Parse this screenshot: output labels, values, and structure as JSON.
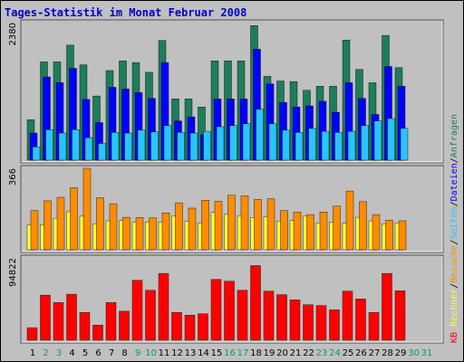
{
  "title": "Tages-Statistik im Monat Februar 2008",
  "colors": {
    "background": "#c0c0c0",
    "title": "#0000cc",
    "hits": "#1e7d5a",
    "files": "#0000ff",
    "pages": "#29c4ff",
    "visits": "#ff8c00",
    "sites": "#ffff33",
    "kbytes": "#ff0000",
    "weekend": "#119966",
    "weekday": "#000000"
  },
  "chart_data": [
    {
      "type": "bar",
      "panel": "top",
      "ymax_label": "2380",
      "ylim": [
        0,
        2380
      ],
      "categories": [
        "1",
        "2",
        "3",
        "4",
        "5",
        "6",
        "7",
        "8",
        "9",
        "10",
        "11",
        "12",
        "13",
        "14",
        "15",
        "16",
        "17",
        "18",
        "19",
        "20",
        "21",
        "22",
        "23",
        "24",
        "25",
        "26",
        "27",
        "28",
        "29"
      ],
      "right_labels": [
        {
          "text": "Anfragen",
          "color": "#1e7d5a"
        },
        {
          "text": "Dateien",
          "color": "#0000ff"
        },
        {
          "text": "Seiten",
          "color": "#29c4ff"
        }
      ],
      "series": [
        {
          "key": "hits",
          "values": [
            700,
            1700,
            1700,
            1990,
            1650,
            1110,
            1550,
            1720,
            1690,
            1520,
            2070,
            1060,
            1060,
            920,
            1720,
            1720,
            1720,
            2330,
            1450,
            1370,
            1360,
            1210,
            1280,
            1280,
            2080,
            1570,
            1340,
            2160,
            1600
          ]
        },
        {
          "key": "files",
          "values": [
            470,
            1440,
            1340,
            1590,
            1050,
            650,
            1260,
            1230,
            1170,
            1070,
            1690,
            680,
            750,
            440,
            1060,
            1060,
            1060,
            1920,
            1320,
            1000,
            920,
            940,
            1020,
            830,
            1340,
            1070,
            790,
            1620,
            1280
          ]
        },
        {
          "key": "pages",
          "values": [
            230,
            530,
            470,
            530,
            390,
            290,
            480,
            470,
            520,
            490,
            600,
            480,
            470,
            500,
            580,
            600,
            630,
            880,
            630,
            520,
            480,
            550,
            500,
            480,
            500,
            600,
            680,
            720,
            550
          ]
        }
      ]
    },
    {
      "type": "bar",
      "panel": "middle",
      "ymax_label": "366",
      "ylim": [
        0,
        366
      ],
      "categories": [
        "1",
        "2",
        "3",
        "4",
        "5",
        "6",
        "7",
        "8",
        "9",
        "10",
        "11",
        "12",
        "13",
        "14",
        "15",
        "16",
        "17",
        "18",
        "19",
        "20",
        "21",
        "22",
        "23",
        "24",
        "25",
        "26",
        "27",
        "28",
        "29"
      ],
      "right_labels": [
        {
          "text": "Besuche",
          "color": "#ff8c00"
        },
        {
          "text": "Rechner",
          "color": "#ffff33"
        }
      ],
      "series": [
        {
          "key": "visits",
          "values": [
            176,
            220,
            236,
            279,
            366,
            234,
            207,
            146,
            145,
            143,
            166,
            211,
            187,
            223,
            218,
            245,
            243,
            226,
            229,
            176,
            169,
            158,
            170,
            196,
            264,
            216,
            158,
            133,
            130
          ]
        },
        {
          "key": "sites",
          "values": [
            113,
            113,
            142,
            171,
            151,
            117,
            130,
            131,
            125,
            125,
            125,
            151,
            128,
            120,
            168,
            159,
            151,
            145,
            148,
            129,
            131,
            151,
            121,
            125,
            119,
            146,
            130,
            117,
            121
          ]
        }
      ]
    },
    {
      "type": "bar",
      "panel": "bottom",
      "ymax_label": "94822",
      "ylim": [
        0,
        94822
      ],
      "categories": [
        "1",
        "2",
        "3",
        "4",
        "5",
        "6",
        "7",
        "8",
        "9",
        "10",
        "11",
        "12",
        "13",
        "14",
        "15",
        "16",
        "17",
        "18",
        "19",
        "20",
        "21",
        "22",
        "23",
        "24",
        "25",
        "26",
        "27",
        "28",
        "29"
      ],
      "right_labels": [
        {
          "text": "KB",
          "color": "#ff0000"
        }
      ],
      "series": [
        {
          "key": "kbytes",
          "values": [
            14500,
            52000,
            43500,
            53000,
            32000,
            17500,
            43500,
            33500,
            69000,
            57500,
            77000,
            32000,
            29000,
            30500,
            70000,
            68000,
            57500,
            86000,
            56500,
            52500,
            46500,
            41000,
            40000,
            35000,
            56500,
            47500,
            32000,
            77000,
            57000
          ]
        }
      ]
    }
  ],
  "x_axis": {
    "days": [
      "1",
      "2",
      "3",
      "4",
      "5",
      "6",
      "7",
      "8",
      "9",
      "10",
      "11",
      "12",
      "13",
      "14",
      "15",
      "16",
      "17",
      "18",
      "19",
      "20",
      "21",
      "22",
      "23",
      "24",
      "25",
      "26",
      "27",
      "28",
      "29",
      "30",
      "31"
    ],
    "weekend_days": [
      "2",
      "3",
      "9",
      "10",
      "16",
      "17",
      "23",
      "24",
      "30",
      "31"
    ]
  }
}
